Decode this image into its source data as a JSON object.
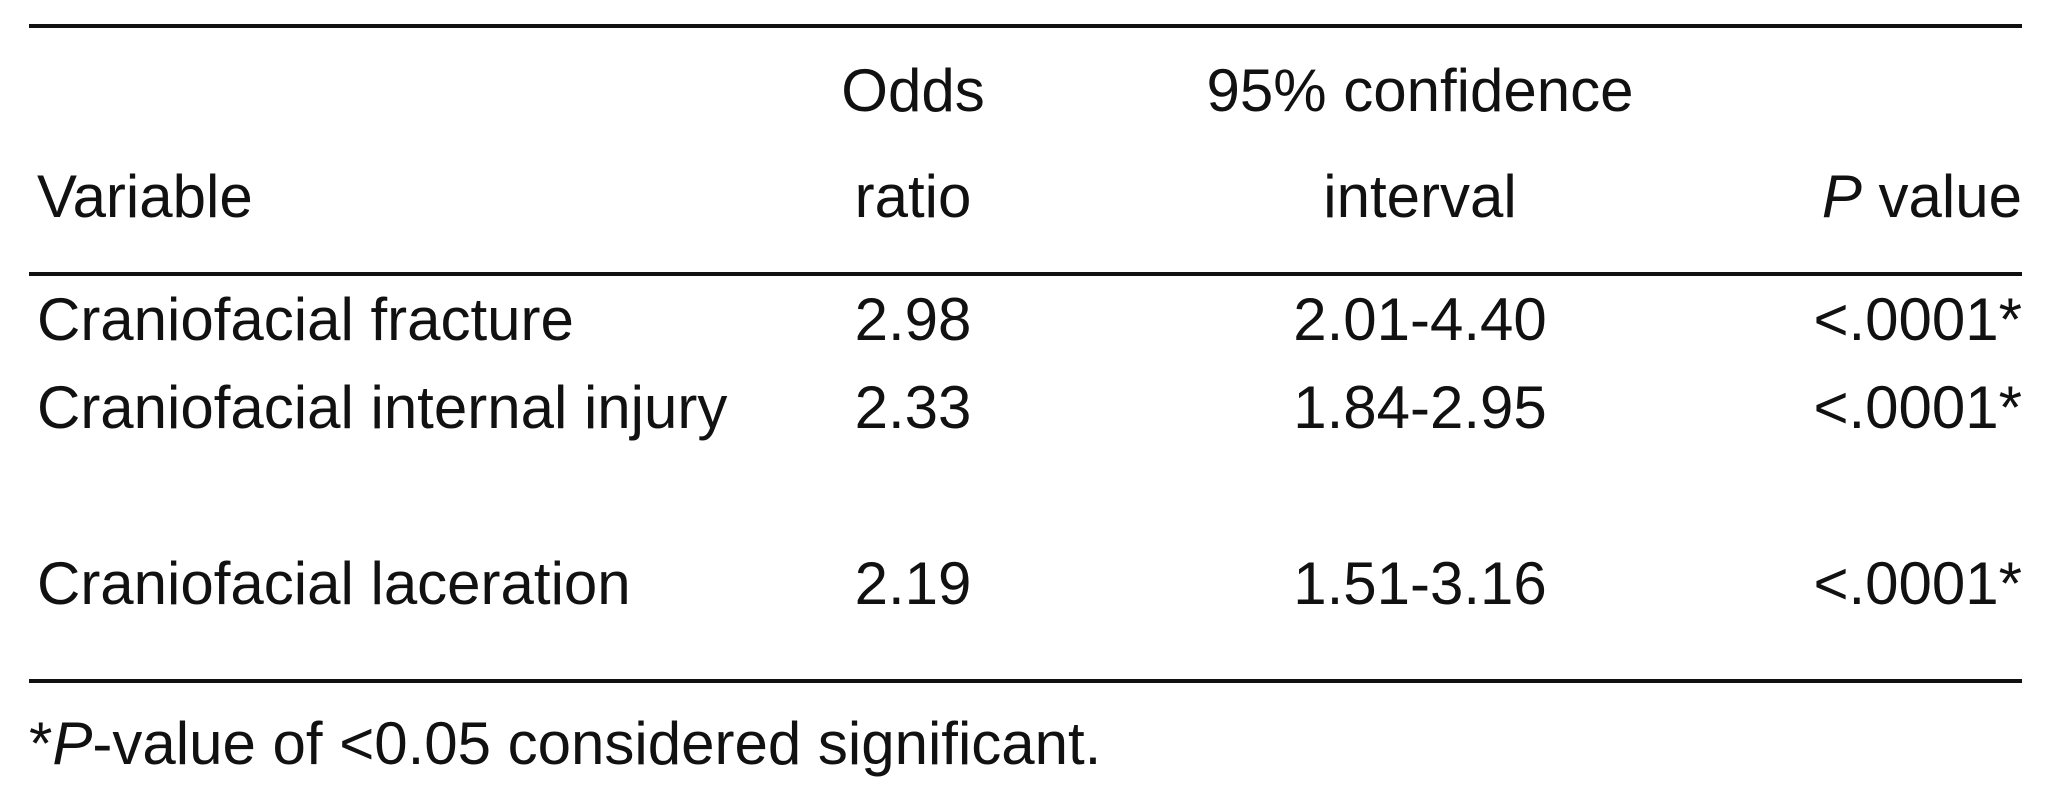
{
  "table": {
    "header": [
      {
        "lines": [
          "Variable"
        ]
      },
      {
        "lines": [
          "Odds",
          "ratio"
        ]
      },
      {
        "lines": [
          "95% confidence",
          "interval"
        ]
      },
      {
        "italic": "P",
        "text": " value"
      }
    ],
    "rows": [
      [
        "Craniofacial fracture",
        "2.98",
        "2.01-4.40",
        "<.0001*"
      ],
      [
        "Craniofacial internal injury",
        "2.33",
        "1.84-2.95",
        "<.0001*"
      ],
      [
        "Craniofacial laceration",
        "2.19",
        "1.51-3.16",
        "<.0001*"
      ]
    ],
    "footnote": {
      "mark": "*",
      "italic": "P",
      "text": "-value of <0.05 considered significant."
    }
  }
}
